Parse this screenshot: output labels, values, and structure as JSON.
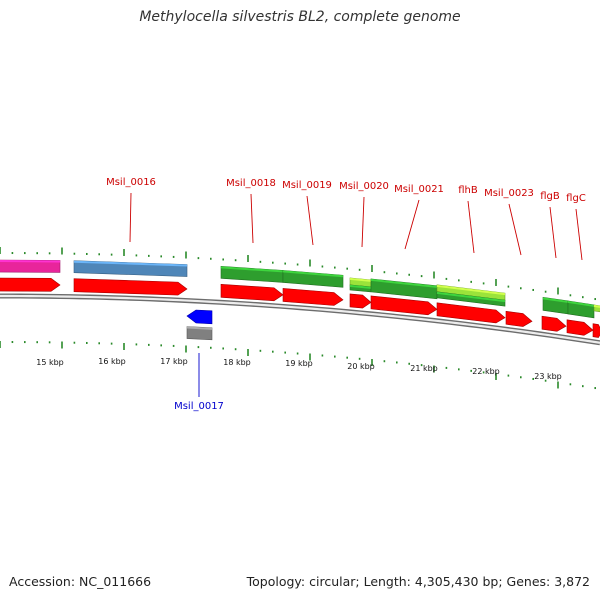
{
  "title": "Methylocella silvestris BL2, complete genome",
  "footer": {
    "accession": "Accession: NC_011666",
    "topology": "Topology: circular; Length: 4,305,430 bp; Genes: 3,872"
  },
  "colors": {
    "cds_forward": "#ff0000",
    "cds_reverse": "#0000ff",
    "cog_pink": "#e8259b",
    "cog_steelblue": "#4f86b8",
    "cog_darkgreen": "#2e9e2e",
    "cog_lightgreen": "#9be33a",
    "cog_gray": "#808080",
    "backbone": "#9a9a9a",
    "tick": "#2a8a2a",
    "forward_label": "#cc0000",
    "reverse_label": "#0000cc"
  },
  "scale_labels": [
    "15 kbp",
    "16 kbp",
    "17 kbp",
    "18 kbp",
    "19 kbp",
    "20 kbp",
    "21 kbp",
    "22 kbp",
    "23 kbp"
  ],
  "forward_gene_labels": [
    "Msil_0016",
    "Msil_0018",
    "Msil_0019",
    "Msil_0020",
    "Msil_0021",
    "flhB",
    "Msil_0023",
    "flgB",
    "flgC"
  ],
  "reverse_gene_labels": [
    "Msil_0017"
  ]
}
